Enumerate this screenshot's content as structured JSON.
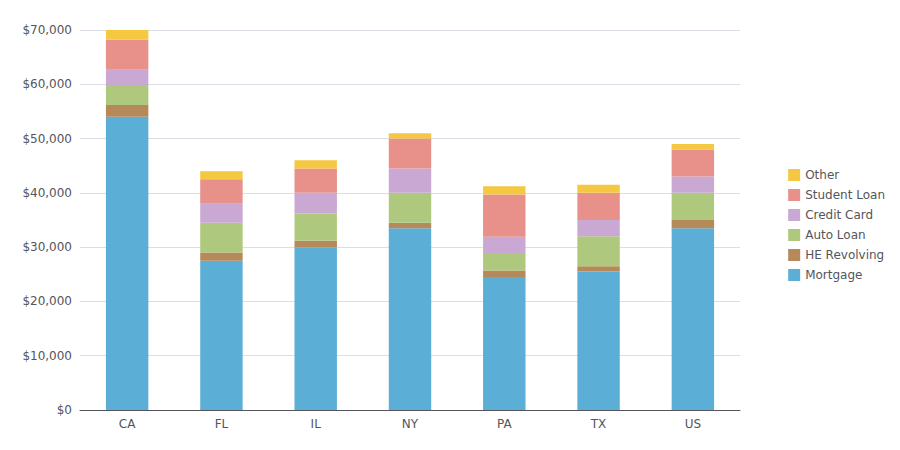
{
  "chart_data": {
    "type": "bar",
    "stacked": true,
    "categories": [
      "CA",
      "FL",
      "IL",
      "NY",
      "PA",
      "TX",
      "US"
    ],
    "series": [
      {
        "name": "Mortgage",
        "color": "#5bafd6",
        "values": [
          54000,
          27500,
          30000,
          33500,
          24500,
          25500,
          33500
        ]
      },
      {
        "name": "HE Revolving",
        "color": "#b5895a",
        "values": [
          2200,
          1500,
          1200,
          1000,
          1200,
          1000,
          1500
        ]
      },
      {
        "name": "Auto Loan",
        "color": "#aec97e",
        "values": [
          3500,
          5500,
          5000,
          5500,
          3200,
          5500,
          5000
        ]
      },
      {
        "name": "Credit Card",
        "color": "#c9a8d4",
        "values": [
          3000,
          3500,
          3800,
          4500,
          3000,
          3000,
          3000
        ]
      },
      {
        "name": "Student Loan",
        "color": "#e8908a",
        "values": [
          5500,
          4500,
          4500,
          5500,
          7800,
          5000,
          5000
        ]
      },
      {
        "name": "Other",
        "color": "#f5c842",
        "values": [
          1800,
          1500,
          1500,
          1000,
          1500,
          1500,
          1000
        ]
      }
    ],
    "ylim": [
      0,
      70000
    ],
    "yticks": [
      {
        "value": 0,
        "label": "$0"
      },
      {
        "value": 10000,
        "label": "$10,000"
      },
      {
        "value": 20000,
        "label": "$20,000"
      },
      {
        "value": 30000,
        "label": "$30,000"
      },
      {
        "value": 40000,
        "label": "$40,000"
      },
      {
        "value": 50000,
        "label": "$50,000"
      },
      {
        "value": 60000,
        "label": "$60,000"
      },
      {
        "value": 70000,
        "label": "$70,000"
      }
    ],
    "grid": true,
    "legend": "right"
  }
}
